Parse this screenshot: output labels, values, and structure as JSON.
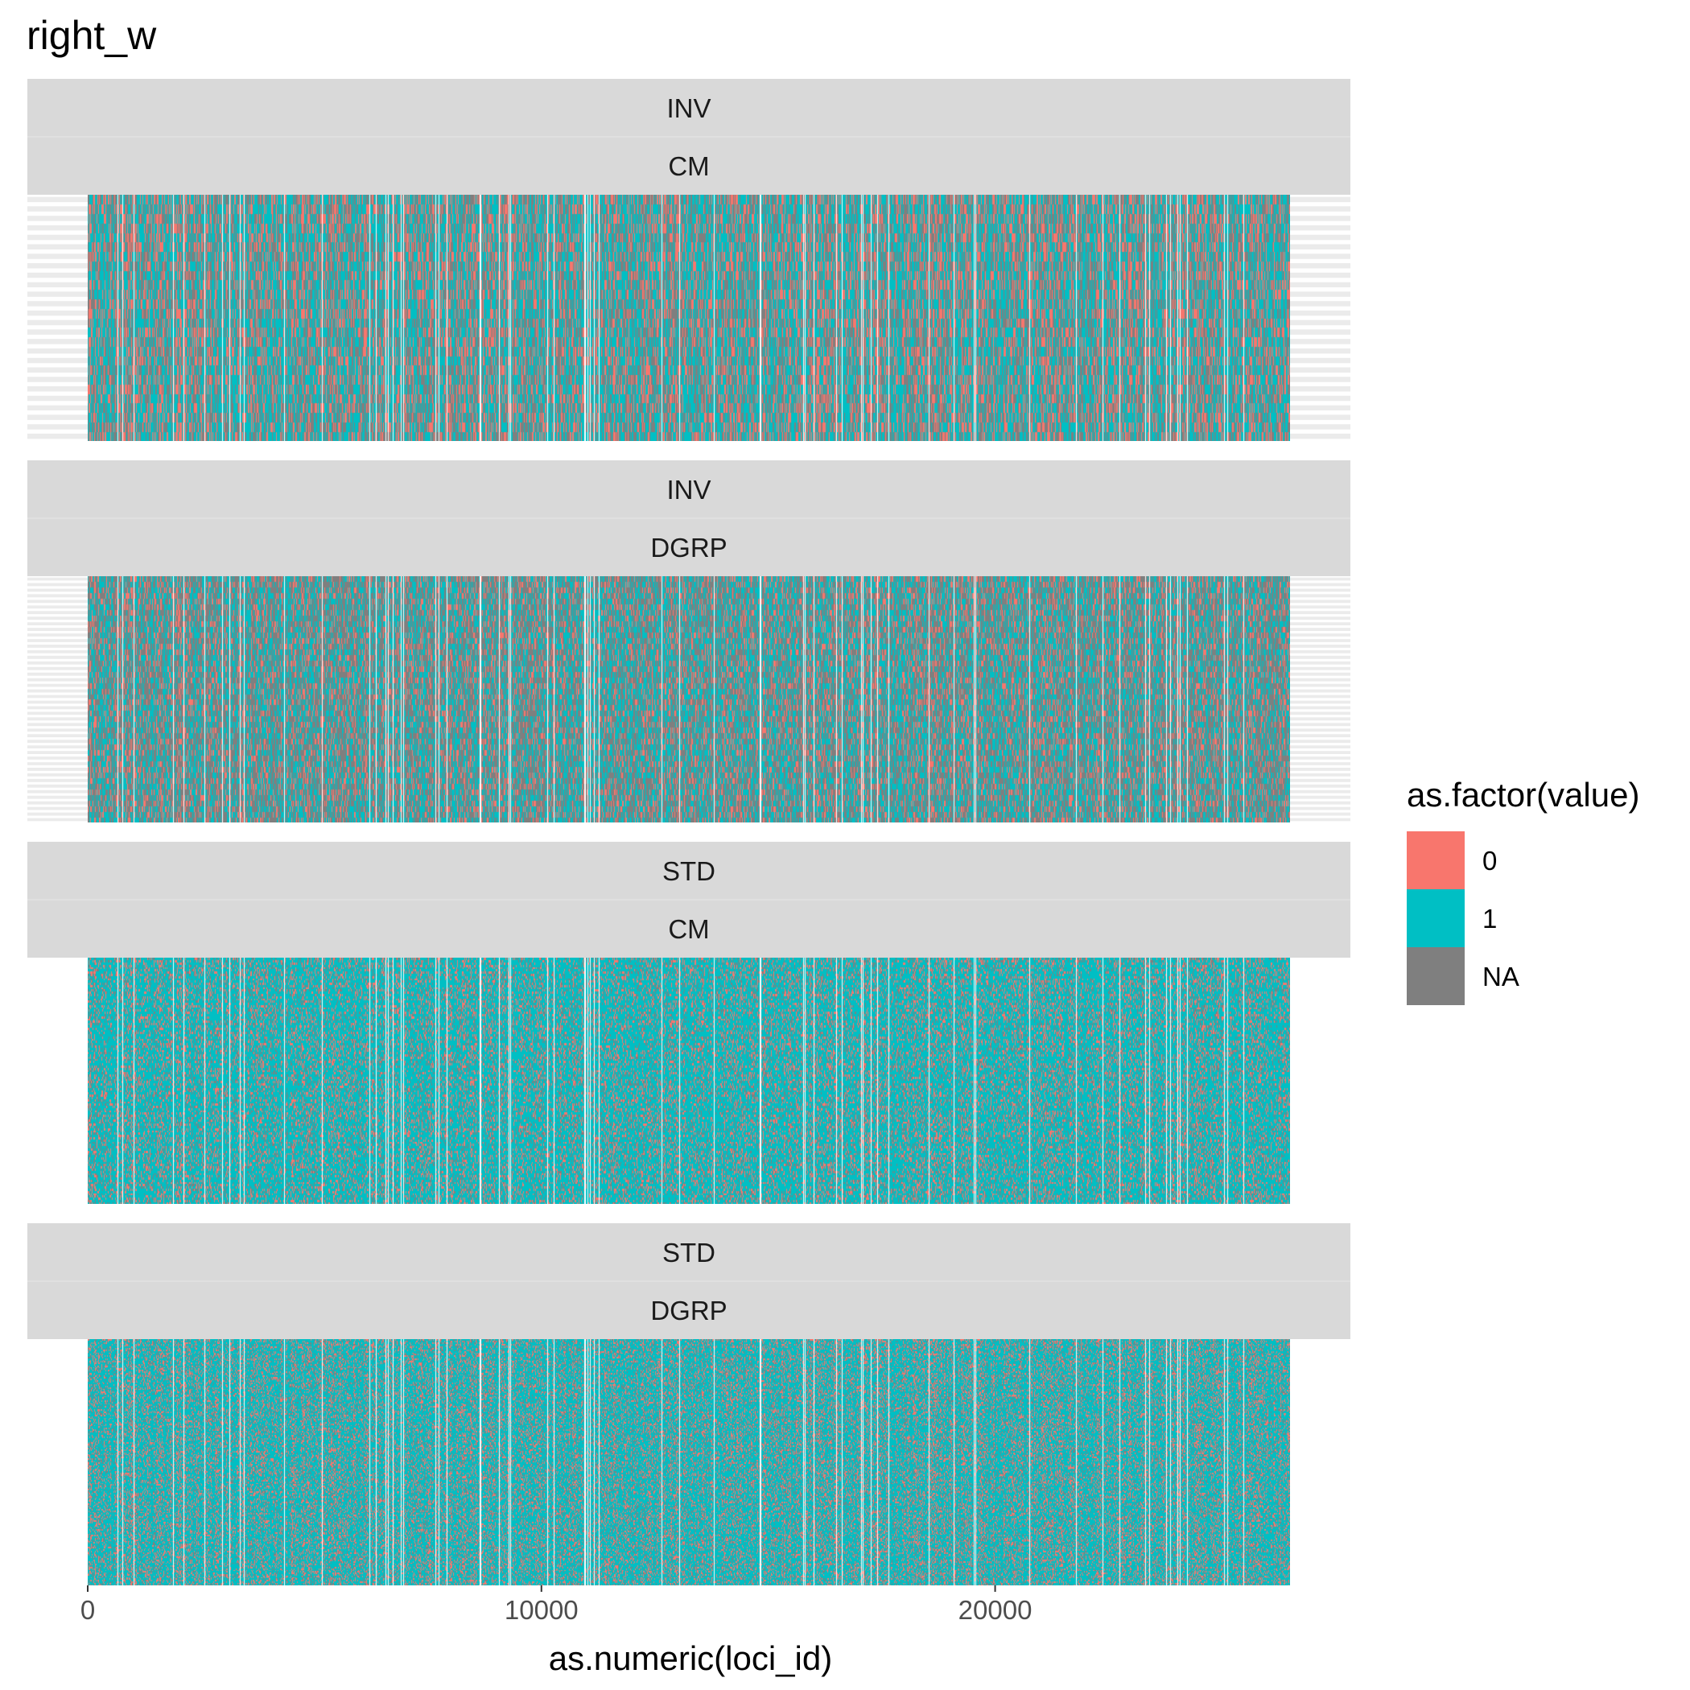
{
  "chart_data": {
    "type": "heatmap",
    "title": "right_w",
    "xlabel": "as.numeric(loci_id)",
    "ylabel": "",
    "x_ticks": [
      0,
      10000,
      20000
    ],
    "xlim": [
      0,
      26500
    ],
    "legend": {
      "title": "as.factor(value)",
      "position": "right",
      "entries": [
        {
          "label": "0",
          "color": "#F8766D"
        },
        {
          "label": "1",
          "color": "#00BFC4"
        },
        {
          "label": "NA",
          "color": "#7F7F7F"
        }
      ]
    },
    "panels": [
      {
        "strips": [
          "INV",
          "CM"
        ],
        "rows": 26,
        "row_gridlines": true,
        "p0": 0.22,
        "pNA": 0.3
      },
      {
        "strips": [
          "INV",
          "DGRP"
        ],
        "rows": 44,
        "row_gridlines": true,
        "p0": 0.16,
        "pNA": 0.42
      },
      {
        "strips": [
          "STD",
          "CM"
        ],
        "rows": 110,
        "row_gridlines": false,
        "p0": 0.17,
        "pNA": 0.12
      },
      {
        "strips": [
          "STD",
          "DGRP"
        ],
        "rows": 170,
        "row_gridlines": false,
        "p0": 0.2,
        "pNA": 0.1
      }
    ],
    "grid": false,
    "background": "#ffffff"
  }
}
